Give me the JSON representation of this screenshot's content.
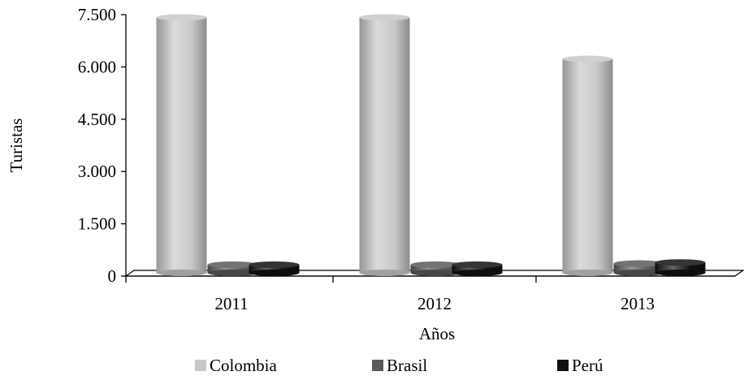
{
  "chart_data": {
    "type": "bar",
    "title": "",
    "xlabel": "Años",
    "ylabel": "Turistas",
    "categories": [
      "2011",
      "2012",
      "2013"
    ],
    "ylim": [
      0,
      7500
    ],
    "yticks": [
      0,
      1500,
      3000,
      4500,
      6000,
      7500
    ],
    "ytick_labels": [
      "0",
      "1.500",
      "3.000",
      "4.500",
      "6.000",
      "7.500"
    ],
    "series": [
      {
        "name": "Colombia",
        "color": "#c8c8c8",
        "values": [
          7420,
          7420,
          6230
        ]
      },
      {
        "name": "Brasil",
        "color": "#5a5a5a",
        "values": [
          290,
          290,
          360
        ]
      },
      {
        "name": "Perú",
        "color": "#111111",
        "values": [
          290,
          320,
          390
        ]
      }
    ],
    "legend_position": "bottom",
    "grid": false,
    "style": "3d-cylinder"
  }
}
